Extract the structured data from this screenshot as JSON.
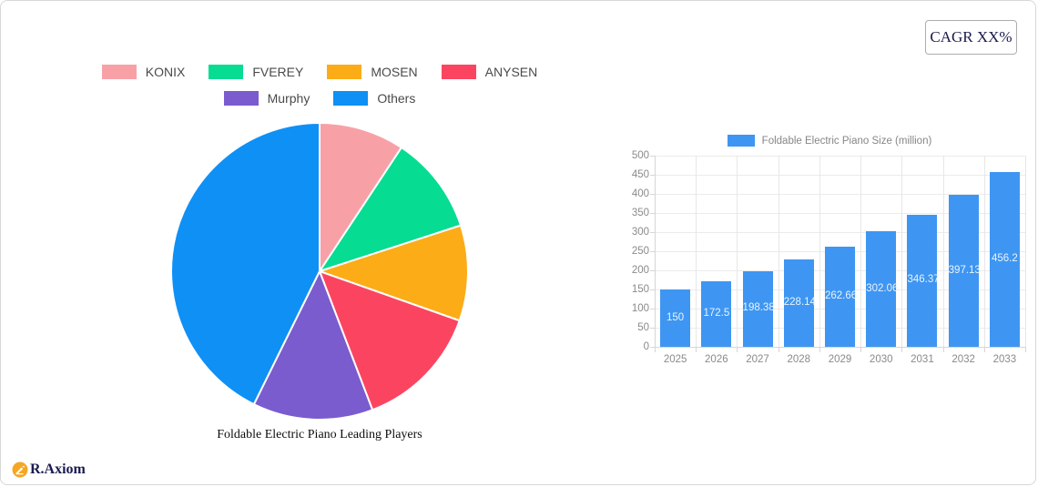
{
  "card": {
    "cagr_label": "CAGR XX%"
  },
  "logo": {
    "text": "R.Axiom",
    "icon_color": "#F5A623"
  },
  "chart_data": [
    {
      "type": "pie",
      "title": "Foldable Electric Piano Leading Players",
      "labels": [
        "KONIX",
        "FVEREY",
        "MOSEN",
        "ANYSEN",
        "Murphy",
        "Others"
      ],
      "values": [
        9.3,
        10.7,
        10.4,
        13.8,
        13.1,
        42.7
      ],
      "unit": "percent_share",
      "colors": [
        "#F7A1A7",
        "#07DC93",
        "#FBAC17",
        "#FB4560",
        "#7A5CCE",
        "#0F90F5"
      ],
      "start_angle_deg": 0,
      "slice_border_color": "#ffffff",
      "legend_position": "top",
      "legend_rows": [
        [
          0,
          1,
          2,
          3
        ],
        [
          4,
          5
        ]
      ]
    },
    {
      "type": "bar",
      "legend": "Foldable Electric Piano Size (million)",
      "categories": [
        "2025",
        "2026",
        "2027",
        "2028",
        "2029",
        "2030",
        "2031",
        "2032",
        "2033"
      ],
      "values": [
        150,
        172.5,
        198.38,
        228.14,
        262.66,
        302.06,
        346.37,
        397.13,
        456.2
      ],
      "value_labels": [
        "150",
        "172.5",
        "198.38",
        "228.14",
        "262.66",
        "302.06",
        "346.37",
        "397.13",
        "456.2"
      ],
      "bar_color": "#3E96F2",
      "ylim": [
        0,
        500
      ],
      "y_tick_step": 50,
      "y_tick_labels": [
        "0",
        "50",
        "100",
        "150",
        "200",
        "250",
        "300",
        "350",
        "400",
        "450",
        "500"
      ],
      "grid": true,
      "legend_position": "top"
    }
  ]
}
